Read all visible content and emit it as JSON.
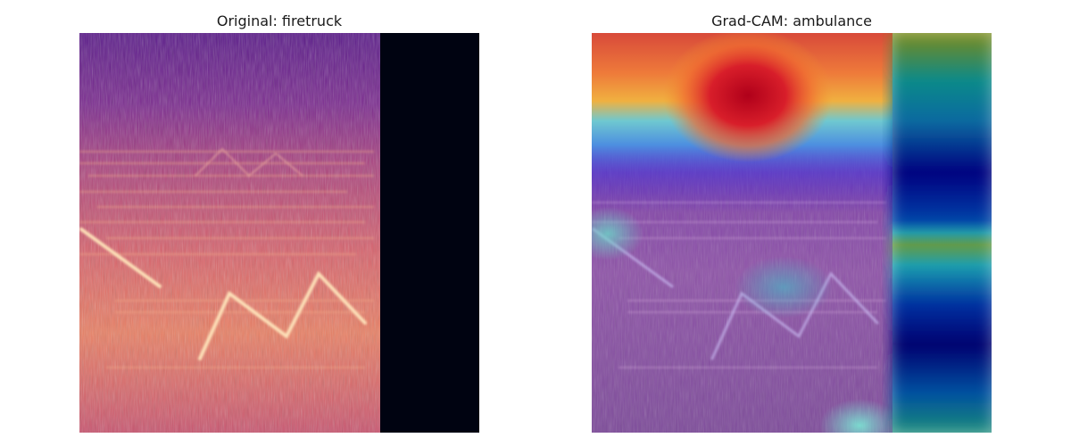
{
  "figure": {
    "panels": [
      {
        "title": "Original: firetruck",
        "content": "spectrogram"
      },
      {
        "title": "Grad-CAM: ambulance",
        "content": "grad-cam heatmap overlay on spectrogram"
      }
    ],
    "colormaps": {
      "spectrogram": "magma",
      "heatmap": "jet"
    },
    "colors": {
      "spectrogram_dark": "#3a0f6a",
      "spectrogram_mid": "#b33e7a",
      "spectrogram_bright": "#f6a070",
      "padding": "#000311",
      "heat_hot": "#c8102a",
      "heat_cool": "#00138c"
    }
  }
}
